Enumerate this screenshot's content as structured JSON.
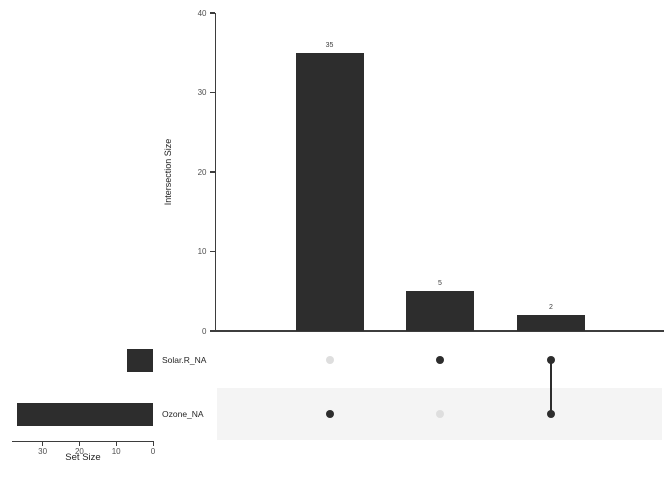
{
  "colors": {
    "background": "#ffffff",
    "bar": "#2d2d2d",
    "axis": "#3d3d3d",
    "tick_label": "#4f4f4f",
    "count_label": "#3c3c3c",
    "axis_title": "#1f1f1f",
    "set_label": "#262626",
    "dot_active": "#2d2d2d",
    "dot_inactive": "#dedede",
    "stripe": "#f4f4f4"
  },
  "chart_data": {
    "type": "upset",
    "intersection_chart": {
      "type": "bar",
      "ylabel": "Intersection Size",
      "ylim": [
        0,
        40
      ],
      "yticks": [
        0,
        10,
        20,
        30,
        40
      ],
      "grid": false,
      "legend": "none",
      "columns": [
        {
          "sets": [
            "Ozone_NA"
          ],
          "value": 35,
          "label": "35"
        },
        {
          "sets": [
            "Solar.R_NA"
          ],
          "value": 5,
          "label": "5"
        },
        {
          "sets": [
            "Solar.R_NA",
            "Ozone_NA"
          ],
          "value": 2,
          "label": "2"
        }
      ]
    },
    "matrix": {
      "rows": [
        "Solar.R_NA",
        "Ozone_NA"
      ],
      "membership_per_column": [
        [
          0,
          1
        ],
        [
          1,
          0
        ],
        [
          1,
          1
        ]
      ],
      "shaded_row": "Ozone_NA"
    },
    "set_size_chart": {
      "type": "bar",
      "orientation": "horizontal-reversed",
      "xlabel": "Set Size",
      "xticks": [
        30,
        20,
        10,
        0
      ],
      "xlim": [
        38,
        0
      ],
      "rows": [
        {
          "name": "Solar.R_NA",
          "value": 7
        },
        {
          "name": "Ozone_NA",
          "value": 37
        }
      ]
    }
  }
}
